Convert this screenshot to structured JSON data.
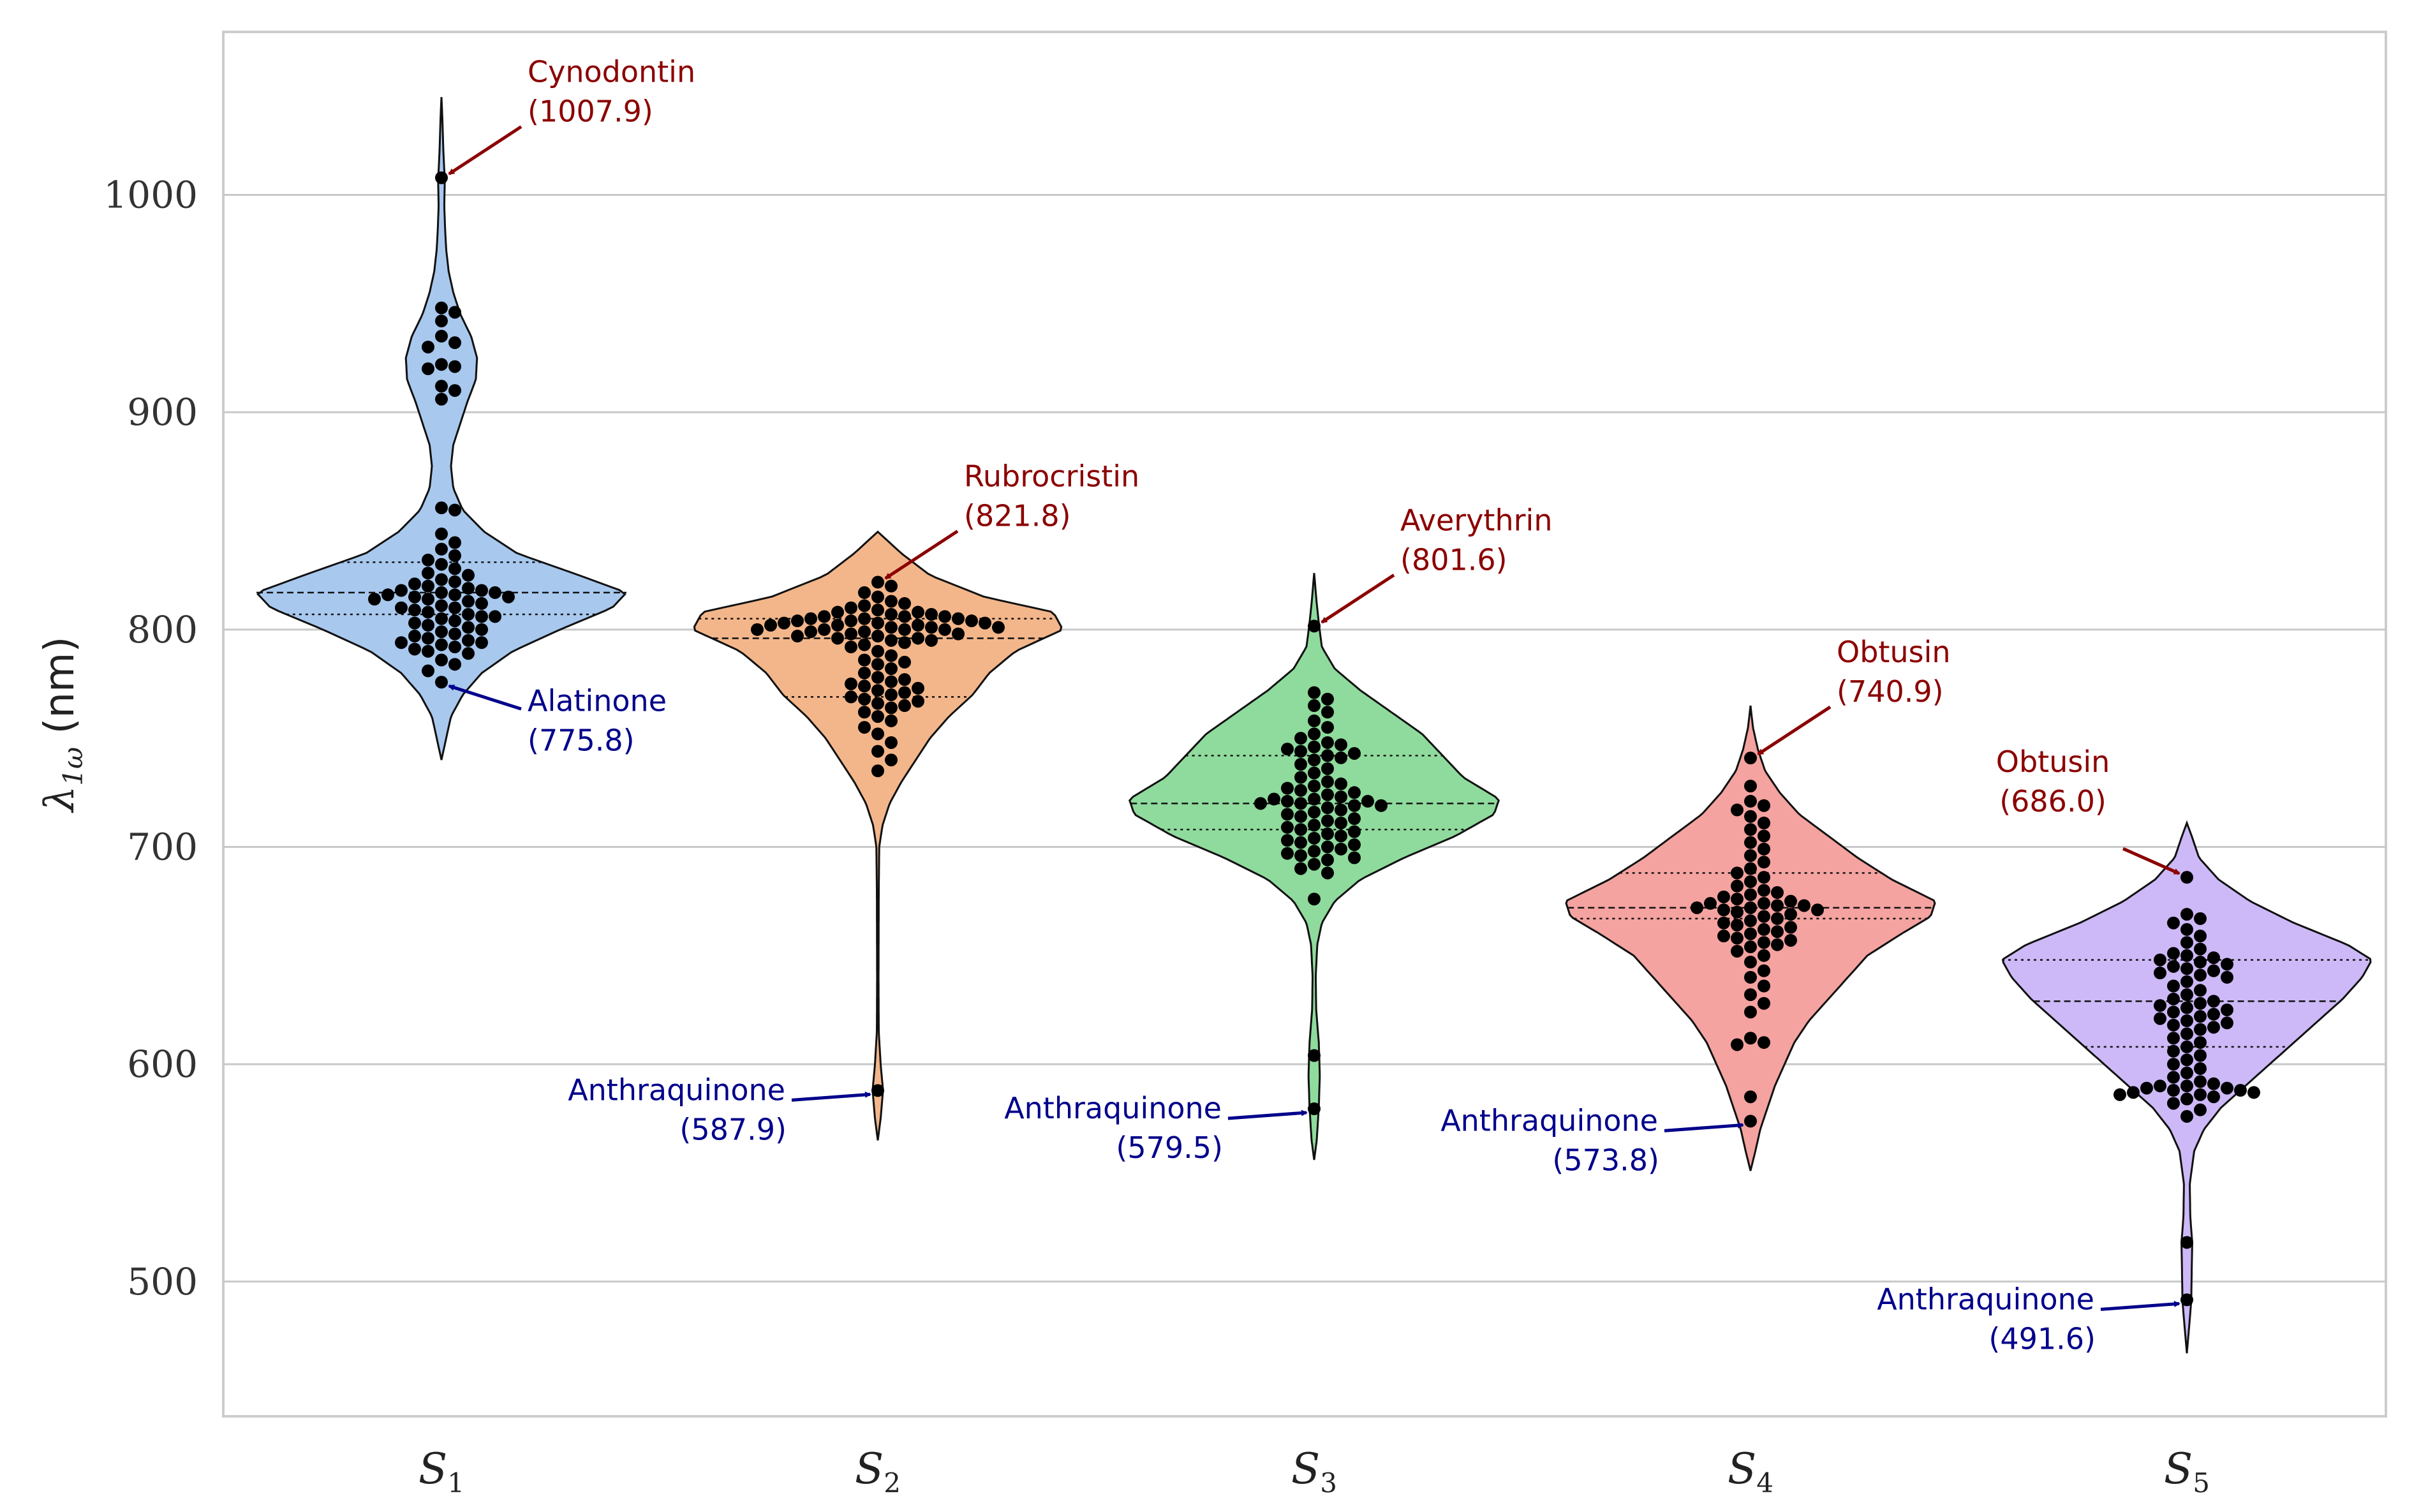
{
  "chart_data": {
    "type": "violin",
    "ylabel": "λ1ω (nm)",
    "ylabel_symbol": "λ",
    "ylabel_subscript": "1ω",
    "ylabel_unit": "(nm)",
    "ylim": [
      438,
      1075
    ],
    "yticks": [
      500,
      600,
      700,
      800,
      900,
      1000
    ],
    "grid": true,
    "categories": [
      {
        "base": "S",
        "sub": "1"
      },
      {
        "base": "S",
        "sub": "2"
      },
      {
        "base": "S",
        "sub": "3"
      },
      {
        "base": "S",
        "sub": "4"
      },
      {
        "base": "S",
        "sub": "5"
      }
    ],
    "colors": [
      "#a8c8ee",
      "#f3b68a",
      "#8fdb9d",
      "#f4a3a0",
      "#cdb9f7"
    ],
    "series": [
      {
        "name": "S1",
        "range": [
          740,
          1045
        ],
        "median": 817,
        "q1": 807,
        "q3": 831,
        "density": [
          [
            740,
            0.0
          ],
          [
            750,
            0.02
          ],
          [
            760,
            0.04
          ],
          [
            770,
            0.09
          ],
          [
            780,
            0.17
          ],
          [
            790,
            0.3
          ],
          [
            800,
            0.5
          ],
          [
            810,
            0.72
          ],
          [
            817,
            0.78
          ],
          [
            825,
            0.58
          ],
          [
            835,
            0.32
          ],
          [
            845,
            0.18
          ],
          [
            855,
            0.09
          ],
          [
            865,
            0.05
          ],
          [
            875,
            0.04
          ],
          [
            885,
            0.05
          ],
          [
            895,
            0.08
          ],
          [
            905,
            0.11
          ],
          [
            915,
            0.145
          ],
          [
            925,
            0.15
          ],
          [
            935,
            0.125
          ],
          [
            945,
            0.08
          ],
          [
            955,
            0.05
          ],
          [
            965,
            0.03
          ],
          [
            975,
            0.02
          ],
          [
            985,
            0.015
          ],
          [
            995,
            0.012
          ],
          [
            1007,
            0.014
          ],
          [
            1020,
            0.008
          ],
          [
            1035,
            0.004
          ],
          [
            1045,
            0.0
          ]
        ],
        "points": [
          1007.9,
          948,
          946,
          942,
          935,
          932,
          930,
          922,
          921,
          920,
          912,
          910,
          906,
          856,
          855,
          844,
          840,
          837,
          834,
          832,
          830,
          828,
          826,
          825,
          823,
          822,
          821,
          820,
          819,
          818,
          818,
          817,
          817,
          816,
          816,
          815,
          815,
          814,
          814,
          813,
          812,
          811,
          810,
          810,
          809,
          808,
          807,
          806,
          806,
          805,
          804,
          803,
          802,
          801,
          800,
          799,
          798,
          797,
          796,
          795,
          794,
          794,
          793,
          792,
          791,
          790,
          789,
          786,
          784,
          781,
          775.8
        ]
      },
      {
        "name": "S2",
        "range": [
          565,
          845
        ],
        "median": 796,
        "q1": 769,
        "q3": 805,
        "density": [
          [
            565,
            0.0
          ],
          [
            575,
            0.012
          ],
          [
            588,
            0.022
          ],
          [
            600,
            0.012
          ],
          [
            615,
            0.004
          ],
          [
            640,
            0.003
          ],
          [
            680,
            0.004
          ],
          [
            700,
            0.006
          ],
          [
            710,
            0.02
          ],
          [
            720,
            0.05
          ],
          [
            730,
            0.1
          ],
          [
            740,
            0.16
          ],
          [
            750,
            0.22
          ],
          [
            760,
            0.3
          ],
          [
            770,
            0.4
          ],
          [
            780,
            0.47
          ],
          [
            790,
            0.58
          ],
          [
            800,
            0.78
          ],
          [
            808,
            0.74
          ],
          [
            815,
            0.45
          ],
          [
            825,
            0.22
          ],
          [
            835,
            0.1
          ],
          [
            845,
            0.0
          ]
        ],
        "points": [
          821.8,
          820,
          817,
          815,
          813,
          812,
          811,
          810,
          809,
          808,
          808,
          807,
          807,
          806,
          806,
          806,
          805,
          805,
          805,
          804,
          804,
          804,
          803,
          803,
          803,
          802,
          802,
          802,
          801,
          801,
          801,
          800,
          800,
          800,
          800,
          799,
          799,
          798,
          798,
          797,
          797,
          796,
          796,
          795,
          795,
          794,
          793,
          792,
          790,
          788,
          786,
          785,
          784,
          782,
          780,
          778,
          777,
          776,
          775,
          774,
          773,
          772,
          771,
          770,
          769,
          768,
          767,
          766,
          765,
          764,
          762,
          760,
          758,
          755,
          752,
          748,
          744,
          740,
          735,
          587.9
        ]
      },
      {
        "name": "S3",
        "range": [
          556,
          826
        ],
        "median": 720,
        "q1": 708,
        "q3": 742,
        "density": [
          [
            556,
            0.0
          ],
          [
            565,
            0.01
          ],
          [
            580,
            0.018
          ],
          [
            595,
            0.022
          ],
          [
            610,
            0.018
          ],
          [
            625,
            0.008
          ],
          [
            640,
            0.006
          ],
          [
            655,
            0.012
          ],
          [
            665,
            0.03
          ],
          [
            675,
            0.08
          ],
          [
            685,
            0.18
          ],
          [
            695,
            0.35
          ],
          [
            705,
            0.55
          ],
          [
            715,
            0.7
          ],
          [
            722,
            0.72
          ],
          [
            732,
            0.58
          ],
          [
            742,
            0.5
          ],
          [
            752,
            0.42
          ],
          [
            762,
            0.3
          ],
          [
            772,
            0.18
          ],
          [
            782,
            0.08
          ],
          [
            792,
            0.03
          ],
          [
            801,
            0.02
          ],
          [
            812,
            0.01
          ],
          [
            826,
            0.0
          ]
        ],
        "points": [
          801.6,
          771,
          768,
          765,
          762,
          758,
          755,
          752,
          750,
          748,
          747,
          746,
          745,
          744,
          743,
          742,
          741,
          740,
          738,
          736,
          734,
          732,
          730,
          729,
          728,
          727,
          726,
          725,
          724,
          723,
          722,
          722,
          721,
          721,
          720,
          720,
          719,
          719,
          718,
          717,
          716,
          715,
          714,
          713,
          712,
          711,
          710,
          709,
          708,
          707,
          706,
          705,
          704,
          703,
          702,
          701,
          700,
          699,
          698,
          697,
          696,
          695,
          694,
          692,
          690,
          688,
          676,
          604,
          579.5
        ]
      },
      {
        "name": "S4",
        "range": [
          551,
          765
        ],
        "median": 672,
        "q1": 667,
        "q3": 688,
        "density": [
          [
            551,
            0.0
          ],
          [
            560,
            0.02
          ],
          [
            570,
            0.04
          ],
          [
            580,
            0.07
          ],
          [
            590,
            0.1
          ],
          [
            600,
            0.14
          ],
          [
            610,
            0.18
          ],
          [
            620,
            0.24
          ],
          [
            630,
            0.32
          ],
          [
            640,
            0.4
          ],
          [
            650,
            0.48
          ],
          [
            660,
            0.62
          ],
          [
            668,
            0.74
          ],
          [
            675,
            0.76
          ],
          [
            685,
            0.58
          ],
          [
            695,
            0.44
          ],
          [
            705,
            0.32
          ],
          [
            715,
            0.2
          ],
          [
            725,
            0.12
          ],
          [
            735,
            0.06
          ],
          [
            745,
            0.03
          ],
          [
            755,
            0.01
          ],
          [
            765,
            0.0
          ]
        ],
        "points": [
          740.9,
          728,
          721,
          719,
          717,
          714,
          711,
          708,
          705,
          702,
          699,
          696,
          693,
          690,
          688,
          686,
          684,
          682,
          680,
          679,
          678,
          677,
          676,
          675,
          674,
          674,
          673,
          673,
          672,
          672,
          671,
          671,
          670,
          669,
          668,
          667,
          666,
          665,
          664,
          663,
          662,
          661,
          660,
          659,
          658,
          657,
          656,
          655,
          654,
          652,
          650,
          647,
          643,
          640,
          636,
          632,
          628,
          624,
          612,
          610,
          609,
          585,
          573.8
        ]
      },
      {
        "name": "S5",
        "range": [
          467,
          711
        ],
        "median": 629,
        "q1": 608,
        "q3": 648,
        "density": [
          [
            467,
            0.0
          ],
          [
            480,
            0.01
          ],
          [
            491,
            0.018
          ],
          [
            505,
            0.02
          ],
          [
            518,
            0.022
          ],
          [
            530,
            0.014
          ],
          [
            545,
            0.012
          ],
          [
            560,
            0.03
          ],
          [
            570,
            0.07
          ],
          [
            580,
            0.14
          ],
          [
            590,
            0.24
          ],
          [
            600,
            0.34
          ],
          [
            610,
            0.44
          ],
          [
            620,
            0.54
          ],
          [
            630,
            0.64
          ],
          [
            640,
            0.72
          ],
          [
            648,
            0.76
          ],
          [
            655,
            0.66
          ],
          [
            665,
            0.44
          ],
          [
            675,
            0.26
          ],
          [
            685,
            0.13
          ],
          [
            695,
            0.05
          ],
          [
            705,
            0.02
          ],
          [
            711,
            0.0
          ]
        ],
        "points": [
          686.0,
          669,
          667,
          665,
          662,
          659,
          656,
          653,
          651,
          650,
          649,
          648,
          647,
          646,
          645,
          644,
          643,
          642,
          641,
          640,
          638,
          636,
          634,
          632,
          630,
          629,
          628,
          627,
          626,
          625,
          624,
          623,
          622,
          621,
          620,
          619,
          618,
          617,
          616,
          614,
          612,
          610,
          608,
          606,
          604,
          602,
          600,
          598,
          596,
          594,
          592,
          591,
          590,
          590,
          589,
          589,
          588,
          588,
          587,
          587,
          586,
          586,
          585,
          584,
          582,
          579,
          576,
          518,
          491.6
        ]
      }
    ],
    "annotations": [
      {
        "series": 0,
        "y": 1007.9,
        "name": "Cynodontin",
        "value": "(1007.9)",
        "kind": "max"
      },
      {
        "series": 0,
        "y": 775.8,
        "name": "Alatinone",
        "value": "(775.8)",
        "kind": "min"
      },
      {
        "series": 1,
        "y": 821.8,
        "name": "Rubrocristin",
        "value": "(821.8)",
        "kind": "max"
      },
      {
        "series": 1,
        "y": 587.9,
        "name": "Anthraquinone",
        "value": "(587.9)",
        "kind": "min"
      },
      {
        "series": 2,
        "y": 801.6,
        "name": "Averythrin",
        "value": "(801.6)",
        "kind": "max"
      },
      {
        "series": 2,
        "y": 579.5,
        "name": "Anthraquinone",
        "value": "(579.5)",
        "kind": "min"
      },
      {
        "series": 3,
        "y": 740.9,
        "name": "Obtusin",
        "value": "(740.9)",
        "kind": "max"
      },
      {
        "series": 3,
        "y": 573.8,
        "name": "Anthraquinone",
        "value": "(573.8)",
        "kind": "min"
      },
      {
        "series": 4,
        "y": 686.0,
        "name": "Obtusin",
        "value": "(686.0)",
        "kind": "max"
      },
      {
        "series": 4,
        "y": 491.6,
        "name": "Anthraquinone",
        "value": "(491.6)",
        "kind": "min"
      }
    ],
    "annotation_colors": {
      "max": "#8b0000",
      "min": "#00008b"
    }
  }
}
